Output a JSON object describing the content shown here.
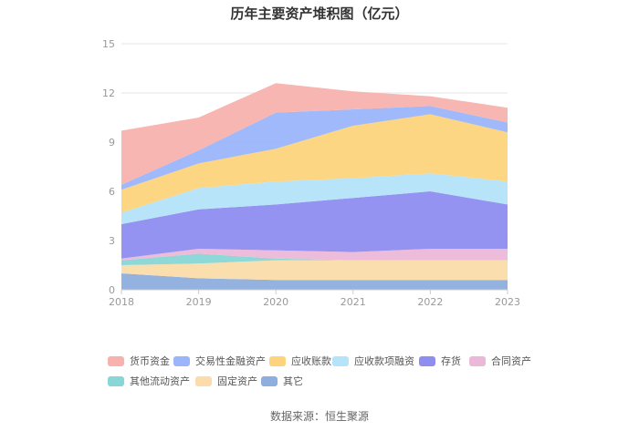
{
  "chart_data": {
    "type": "area",
    "title": "历年主要资产堆积图（亿元）",
    "source": "数据来源：恒生聚源",
    "x": [
      "2018",
      "2019",
      "2020",
      "2021",
      "2022",
      "2023"
    ],
    "ylim": [
      0,
      15
    ],
    "yticks": [
      "0",
      "3",
      "6",
      "9",
      "12",
      "15"
    ],
    "stacked": true,
    "grid": true,
    "legend_position": "bottom",
    "series": [
      {
        "name": "其它",
        "color": "#8eaedd",
        "values": [
          1.0,
          0.7,
          0.6,
          0.6,
          0.6,
          0.6
        ]
      },
      {
        "name": "固定资产",
        "color": "#fbdcaa",
        "values": [
          0.5,
          0.9,
          1.2,
          1.2,
          1.2,
          1.2
        ]
      },
      {
        "name": "其他流动资产",
        "color": "#88d6d6",
        "values": [
          0.3,
          0.6,
          0.1,
          0.0,
          0.0,
          0.0
        ]
      },
      {
        "name": "合同资产",
        "color": "#ebb8d8",
        "values": [
          0.1,
          0.3,
          0.5,
          0.5,
          0.7,
          0.7
        ]
      },
      {
        "name": "存货",
        "color": "#8f8df0",
        "values": [
          2.1,
          2.4,
          2.8,
          3.3,
          3.5,
          2.7
        ]
      },
      {
        "name": "应收款项融资",
        "color": "#b4e3fa",
        "values": [
          0.7,
          1.3,
          1.4,
          1.2,
          1.1,
          1.4
        ]
      },
      {
        "name": "应收账款",
        "color": "#fdd47c",
        "values": [
          1.4,
          1.5,
          2.0,
          3.2,
          3.6,
          3.0
        ]
      },
      {
        "name": "交易性金融资产",
        "color": "#9bb5fa",
        "values": [
          0.3,
          0.8,
          2.2,
          1.0,
          0.5,
          0.6
        ]
      },
      {
        "name": "货币资金",
        "color": "#f8b2ae",
        "values": [
          3.3,
          2.0,
          1.8,
          1.1,
          0.6,
          0.9
        ]
      }
    ],
    "legend_order": [
      "货币资金",
      "交易性金融资产",
      "应收账款",
      "应收款项融资",
      "存货",
      "合同资产",
      "其他流动资产",
      "固定资产",
      "其它"
    ]
  }
}
